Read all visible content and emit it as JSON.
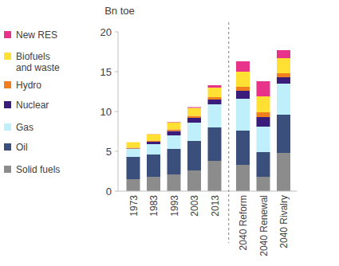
{
  "chart_data": {
    "type": "bar",
    "stacked": true,
    "y_label": "Bn toe",
    "categories": [
      "1973",
      "1983",
      "1993",
      "2003",
      "2013",
      "2040 Reform",
      "2040 Renewal",
      "2040 Rivalry"
    ],
    "ylim": [
      0,
      20
    ],
    "yticks": [
      0,
      5,
      10,
      15,
      20
    ],
    "grid": false,
    "legend": "left",
    "series": [
      {
        "name": "Solid fuels",
        "color": "#8c8c8c",
        "values": [
          1.5,
          1.8,
          2.1,
          2.6,
          3.8,
          3.3,
          1.8,
          4.8
        ]
      },
      {
        "name": "Oil",
        "color": "#3b4f7c",
        "values": [
          2.8,
          2.8,
          3.2,
          3.7,
          4.2,
          4.3,
          3.1,
          4.8
        ]
      },
      {
        "name": "Gas",
        "color": "#bfeffa",
        "values": [
          1.0,
          1.3,
          1.7,
          2.3,
          2.9,
          4.0,
          3.2,
          3.9
        ]
      },
      {
        "name": "Nuclear",
        "color": "#3a1d7a",
        "values": [
          0.05,
          0.3,
          0.55,
          0.6,
          0.6,
          1.0,
          1.2,
          0.8
        ]
      },
      {
        "name": "Hydro",
        "color": "#f07f1e",
        "values": [
          0.1,
          0.15,
          0.2,
          0.25,
          0.3,
          0.5,
          0.6,
          0.5
        ]
      },
      {
        "name": "Biofuels and waste",
        "color": "#ffe033",
        "values": [
          0.7,
          0.8,
          0.9,
          1.0,
          1.2,
          1.9,
          2.0,
          1.9
        ]
      },
      {
        "name": "New RES",
        "color": "#e8338a",
        "values": [
          0,
          0.02,
          0.05,
          0.1,
          0.3,
          1.3,
          1.9,
          1.0
        ]
      }
    ]
  }
}
